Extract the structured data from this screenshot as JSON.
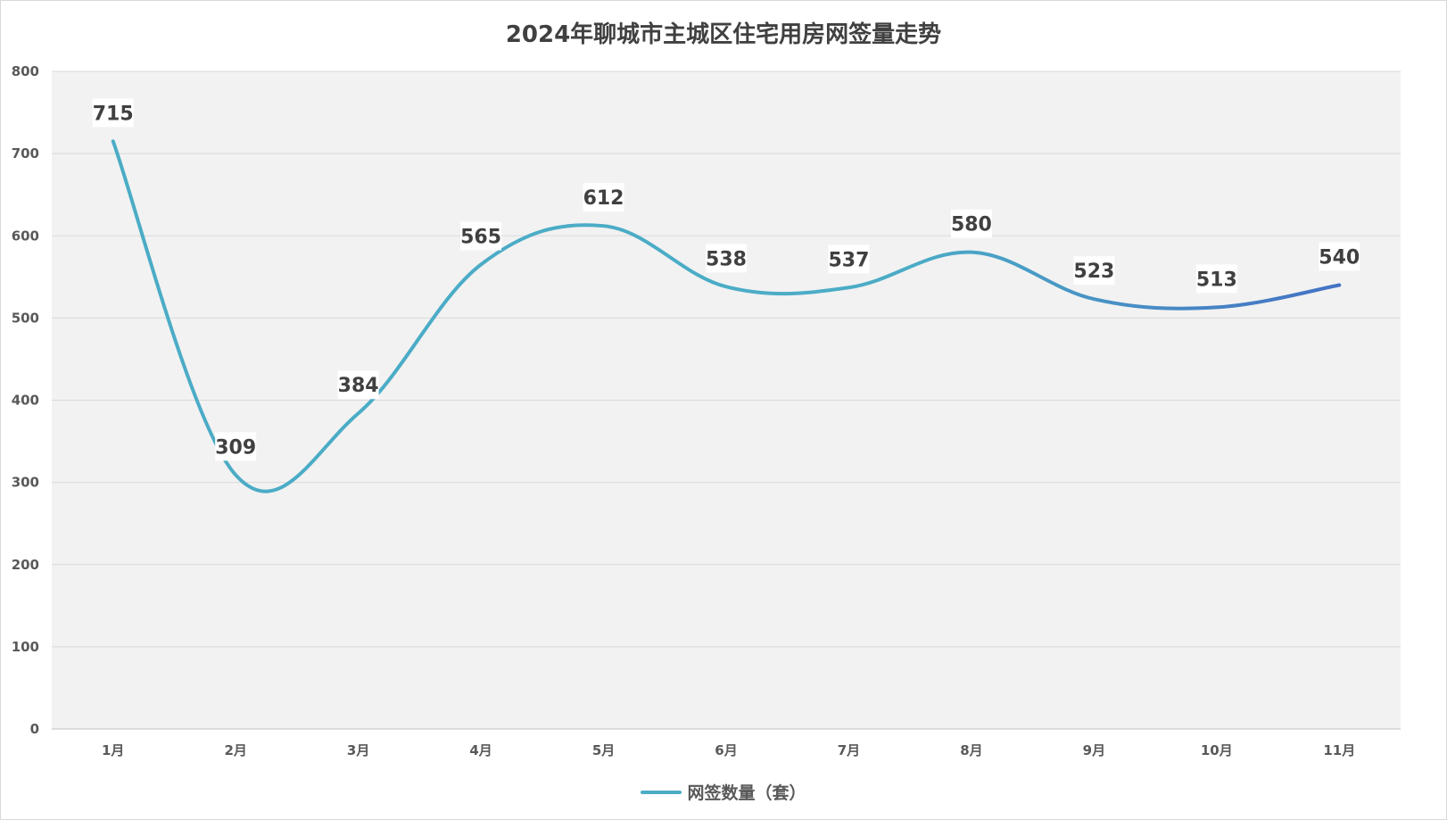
{
  "chart_data": {
    "type": "line",
    "title": "2024年聊城市主城区住宅用房网签量走势",
    "categories": [
      "1月",
      "2月",
      "3月",
      "4月",
      "5月",
      "6月",
      "7月",
      "8月",
      "9月",
      "10月",
      "11月"
    ],
    "series": [
      {
        "name": "网签数量（套）",
        "values": [
          715,
          309,
          384,
          565,
          612,
          538,
          537,
          580,
          523,
          513,
          540
        ]
      }
    ],
    "ylim": [
      0,
      800
    ],
    "yticks": [
      0,
      100,
      200,
      300,
      400,
      500,
      600,
      700,
      800
    ],
    "grid": true,
    "smooth": true,
    "legend_position": "bottom",
    "colors": {
      "line_start": "#4BACC6",
      "line_end": "#4472C4",
      "plot_bg": "#F2F2F2",
      "grid": "#D9D9D9"
    }
  }
}
